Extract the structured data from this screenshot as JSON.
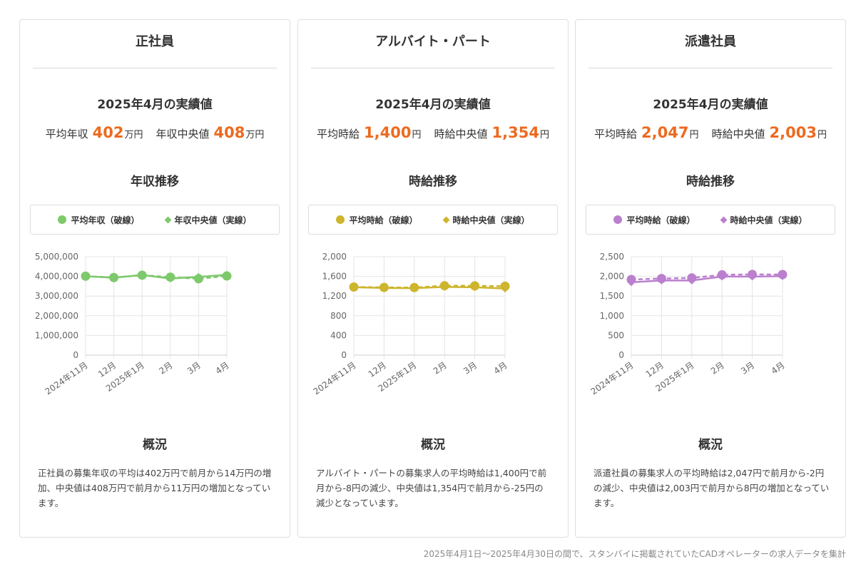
{
  "cards": [
    {
      "title": "正社員",
      "perf_title": "2025年4月の実績値",
      "avg_label": "平均年収",
      "avg_value": "402",
      "avg_unit": "万円",
      "median_label": "年収中央値",
      "median_value": "408",
      "median_unit": "万円",
      "trend_title": "年収推移",
      "legend_avg": "平均年収（破線）",
      "legend_median": "年収中央値（実線）",
      "overview_title": "概況",
      "overview_text": "正社員の募集年収の平均は402万円で前月から14万円の増加、中央値は408万円で前月から11万円の増加となっています。",
      "color": "#7dc96b"
    },
    {
      "title": "アルバイト・パート",
      "perf_title": "2025年4月の実績値",
      "avg_label": "平均時給",
      "avg_value": "1,400",
      "avg_unit": "円",
      "median_label": "時給中央値",
      "median_value": "1,354",
      "median_unit": "円",
      "trend_title": "時給推移",
      "legend_avg": "平均時給（破線）",
      "legend_median": "時給中央値（実線）",
      "overview_title": "概況",
      "overview_text": "アルバイト・パートの募集求人の平均時給は1,400円で前月から-8円の減少、中央値は1,354円で前月から-25円の減少となっています。",
      "color": "#cdb52e"
    },
    {
      "title": "派遣社員",
      "perf_title": "2025年4月の実績値",
      "avg_label": "平均時給",
      "avg_value": "2,047",
      "avg_unit": "円",
      "median_label": "時給中央値",
      "median_value": "2,003",
      "median_unit": "円",
      "trend_title": "時給推移",
      "legend_avg": "平均時給（破線）",
      "legend_median": "時給中央値（実線）",
      "overview_title": "概況",
      "overview_text": "派遣社員の募集求人の平均時給は2,047円で前月から-2円の減少、中央値は2,003円で前月から8円の増加となっています。",
      "color": "#bb7fcf"
    }
  ],
  "footnote": "2025年4月1日〜2025年4月30日の間で、スタンバイに掲載されていたCADオペレーターの求人データを集計",
  "chart_data": [
    {
      "type": "line",
      "categories": [
        "2024年11月",
        "12月",
        "2025年1月",
        "2月",
        "3月",
        "4月"
      ],
      "yticks": [
        "0",
        "1,000,000",
        "2,000,000",
        "3,000,000",
        "4,000,000",
        "5,000,000"
      ],
      "ylim": [
        0,
        5000000
      ],
      "grid": true,
      "series": [
        {
          "name": "平均年収（破線）",
          "style": "dashed",
          "marker": "circle",
          "values": [
            4010000,
            3940000,
            4060000,
            3960000,
            3880000,
            4020000
          ]
        },
        {
          "name": "年収中央値（実線）",
          "style": "solid",
          "marker": "diamond",
          "values": [
            4010000,
            3930000,
            4070000,
            3890000,
            3970000,
            4080000
          ]
        }
      ]
    },
    {
      "type": "line",
      "categories": [
        "2024年11月",
        "12月",
        "2025年1月",
        "2月",
        "3月",
        "4月"
      ],
      "yticks": [
        "0",
        "400",
        "800",
        "1,200",
        "1,600",
        "2,000"
      ],
      "ylim": [
        0,
        2000
      ],
      "grid": true,
      "series": [
        {
          "name": "平均時給（破線）",
          "style": "dashed",
          "marker": "circle",
          "values": [
            1384,
            1375,
            1373,
            1410,
            1408,
            1400
          ]
        },
        {
          "name": "時給中央値（実線）",
          "style": "solid",
          "marker": "diamond",
          "values": [
            1380,
            1365,
            1360,
            1385,
            1379,
            1354
          ]
        }
      ]
    },
    {
      "type": "line",
      "categories": [
        "2024年11月",
        "12月",
        "2025年1月",
        "2月",
        "3月",
        "4月"
      ],
      "yticks": [
        "0",
        "500",
        "1,000",
        "1,500",
        "2,000",
        "2,500"
      ],
      "ylim": [
        0,
        2500
      ],
      "grid": true,
      "series": [
        {
          "name": "平均時給（破線）",
          "style": "dashed",
          "marker": "circle",
          "values": [
            1920,
            1945,
            1960,
            2040,
            2049,
            2047
          ]
        },
        {
          "name": "時給中央値（実線）",
          "style": "solid",
          "marker": "diamond",
          "values": [
            1850,
            1895,
            1895,
            1995,
            1995,
            2003
          ]
        }
      ]
    }
  ]
}
